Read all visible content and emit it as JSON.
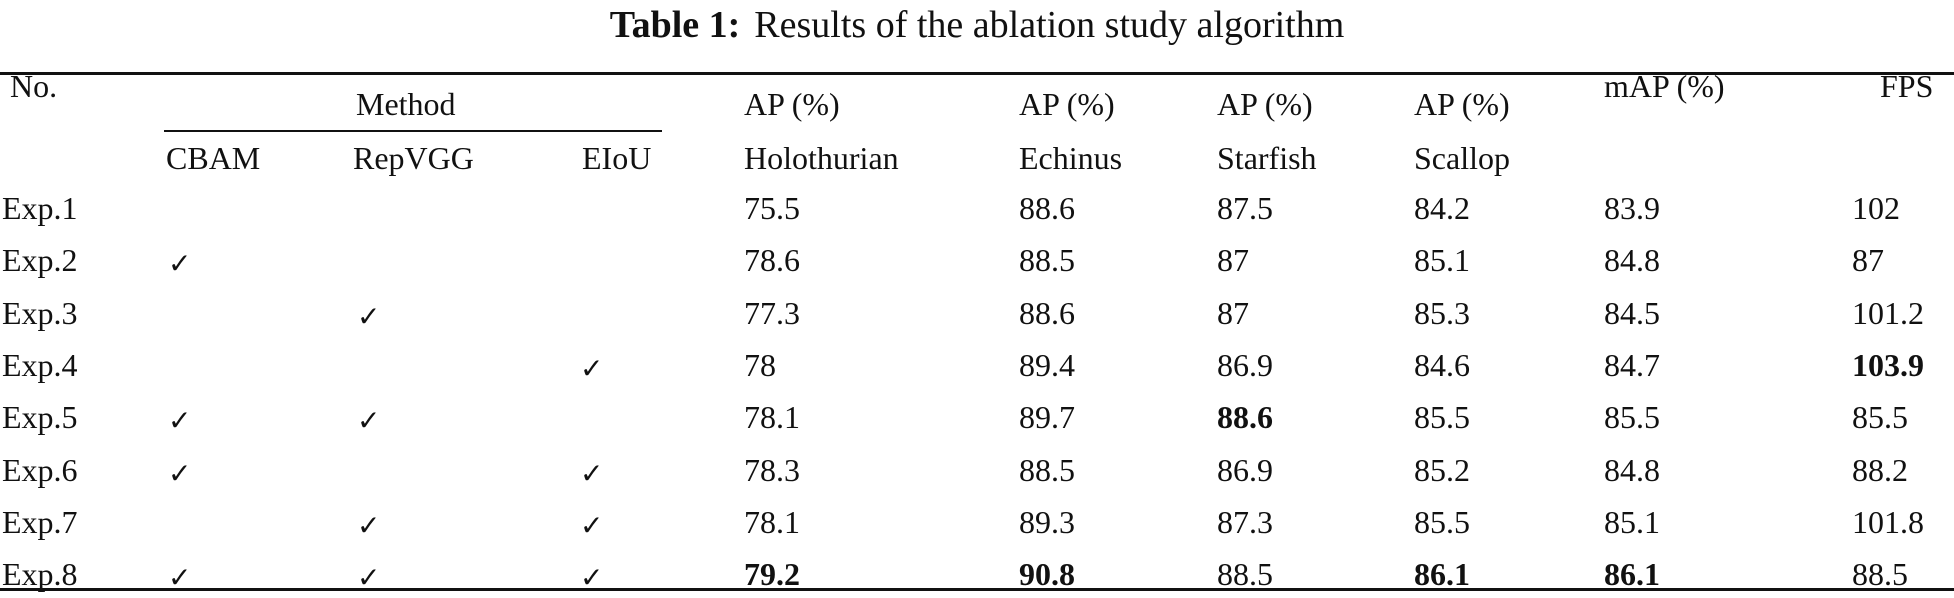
{
  "caption": {
    "label": "Table 1:",
    "text": "Results of the ablation study algorithm"
  },
  "header": {
    "no": "No.",
    "method": "Method",
    "cbam": "CBAM",
    "repvgg": "RepVGG",
    "eiou": "EIoU",
    "ap_label": "AP (%)",
    "holothurian": "Holothurian",
    "echinus": "Echinus",
    "starfish": "Starfish",
    "scallop": "Scallop",
    "map": "mAP (%)",
    "fps": "FPS"
  },
  "check_mark": "✓",
  "rows": [
    {
      "no": "Exp.1",
      "cbam": false,
      "repvgg": false,
      "eiou": false,
      "holothurian": "75.5",
      "echinus": "88.6",
      "starfish": "87.5",
      "scallop": "84.2",
      "map": "83.9",
      "fps": "102"
    },
    {
      "no": "Exp.2",
      "cbam": true,
      "repvgg": false,
      "eiou": false,
      "holothurian": "78.6",
      "echinus": "88.5",
      "starfish": "87",
      "scallop": "85.1",
      "map": "84.8",
      "fps": "87"
    },
    {
      "no": "Exp.3",
      "cbam": false,
      "repvgg": true,
      "eiou": false,
      "holothurian": "77.3",
      "echinus": "88.6",
      "starfish": "87",
      "scallop": "85.3",
      "map": "84.5",
      "fps": "101.2"
    },
    {
      "no": "Exp.4",
      "cbam": false,
      "repvgg": false,
      "eiou": true,
      "holothurian": "78",
      "echinus": "89.4",
      "starfish": "86.9",
      "scallop": "84.6",
      "map": "84.7",
      "fps": "103.9"
    },
    {
      "no": "Exp.5",
      "cbam": true,
      "repvgg": true,
      "eiou": false,
      "holothurian": "78.1",
      "echinus": "89.7",
      "starfish": "88.6",
      "scallop": "85.5",
      "map": "85.5",
      "fps": "85.5"
    },
    {
      "no": "Exp.6",
      "cbam": true,
      "repvgg": false,
      "eiou": true,
      "holothurian": "78.3",
      "echinus": "88.5",
      "starfish": "86.9",
      "scallop": "85.2",
      "map": "84.8",
      "fps": "88.2"
    },
    {
      "no": "Exp.7",
      "cbam": false,
      "repvgg": true,
      "eiou": true,
      "holothurian": "78.1",
      "echinus": "89.3",
      "starfish": "87.3",
      "scallop": "85.5",
      "map": "85.1",
      "fps": "101.8"
    },
    {
      "no": "Exp.8",
      "cbam": true,
      "repvgg": true,
      "eiou": true,
      "holothurian": "79.2",
      "echinus": "90.8",
      "starfish": "88.5",
      "scallop": "86.1",
      "map": "86.1",
      "fps": "88.5"
    }
  ],
  "bold_cells": [
    {
      "row": 3,
      "col": "fps"
    },
    {
      "row": 4,
      "col": "starfish"
    },
    {
      "row": 7,
      "col": "holothurian"
    },
    {
      "row": 7,
      "col": "echinus"
    },
    {
      "row": 7,
      "col": "scallop"
    },
    {
      "row": 7,
      "col": "map"
    }
  ]
}
